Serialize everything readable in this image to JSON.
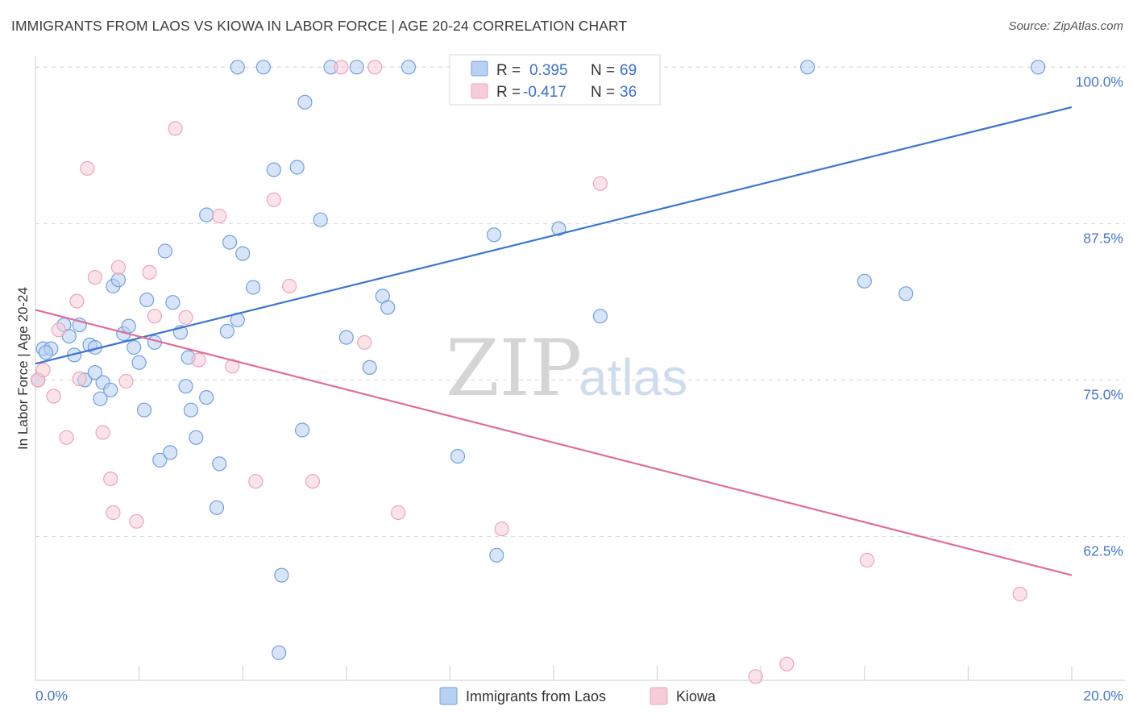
{
  "header": {
    "title": "IMMIGRANTS FROM LAOS VS KIOWA IN LABOR FORCE | AGE 20-24 CORRELATION CHART",
    "source": "Source: ZipAtlas.com"
  },
  "watermark": {
    "zip": "ZIP",
    "atlas": "atlas"
  },
  "legend": {
    "rows": [
      {
        "r_label": "R =",
        "r_value": "0.395",
        "n_label": "N =",
        "n_value": "69"
      },
      {
        "r_label": "R =",
        "r_value": "-0.417",
        "n_label": "N =",
        "n_value": "36"
      }
    ]
  },
  "chart_data": {
    "type": "scatter",
    "ylabel": "In Labor Force | Age 20-24",
    "xlim": [
      0,
      20
    ],
    "ylim": [
      51,
      101.5
    ],
    "x_tick_labels": [
      "0.0%",
      "20.0%"
    ],
    "y_ticks": [
      {
        "value": 62.5,
        "label": "62.5%"
      },
      {
        "value": 75.0,
        "label": "75.0%"
      },
      {
        "value": 87.5,
        "label": "87.5%"
      },
      {
        "value": 100.0,
        "label": "100.0%"
      }
    ],
    "grid": true,
    "legend_position": "top-center",
    "series": [
      {
        "name": "Immigrants from Laos",
        "color": "#6fa0e0",
        "fill": "#b8d0f2",
        "line_color": "#3b76cf",
        "trend": {
          "x": [
            0,
            20
          ],
          "y": [
            76.3,
            96.8
          ]
        },
        "points": [
          [
            0.15,
            77.5
          ],
          [
            0.3,
            77.5
          ],
          [
            0.55,
            79.4
          ],
          [
            0.65,
            78.5
          ],
          [
            0.75,
            77
          ],
          [
            0.85,
            79.4
          ],
          [
            0.95,
            75
          ],
          [
            1.05,
            77.8
          ],
          [
            1.15,
            77.6
          ],
          [
            1.25,
            73.5
          ],
          [
            1.3,
            74.8
          ],
          [
            1.45,
            74.2
          ],
          [
            1.5,
            82.5
          ],
          [
            1.6,
            83
          ],
          [
            1.7,
            78.7
          ],
          [
            1.8,
            79.3
          ],
          [
            1.9,
            77.6
          ],
          [
            2.0,
            76.4
          ],
          [
            2.1,
            72.6
          ],
          [
            2.15,
            81.4
          ],
          [
            2.3,
            78
          ],
          [
            2.4,
            68.6
          ],
          [
            2.5,
            85.3
          ],
          [
            2.6,
            69.2
          ],
          [
            2.65,
            81.2
          ],
          [
            2.8,
            78.8
          ],
          [
            2.9,
            74.5
          ],
          [
            3.0,
            72.6
          ],
          [
            3.1,
            70.4
          ],
          [
            3.3,
            73.6
          ],
          [
            3.3,
            88.2
          ],
          [
            3.5,
            64.8
          ],
          [
            3.55,
            68.3
          ],
          [
            3.7,
            78.9
          ],
          [
            3.75,
            86
          ],
          [
            3.9,
            79.8
          ],
          [
            3.9,
            100
          ],
          [
            4.0,
            85.1
          ],
          [
            4.2,
            82.4
          ],
          [
            4.4,
            100
          ],
          [
            4.6,
            91.8
          ],
          [
            4.7,
            53.2
          ],
          [
            4.75,
            59.4
          ],
          [
            5.05,
            92
          ],
          [
            5.15,
            71
          ],
          [
            5.2,
            97.2
          ],
          [
            5.5,
            87.8
          ],
          [
            5.7,
            100
          ],
          [
            6.0,
            78.4
          ],
          [
            6.2,
            100
          ],
          [
            6.45,
            76
          ],
          [
            6.7,
            81.7
          ],
          [
            6.8,
            80.8
          ],
          [
            7.2,
            100
          ],
          [
            8.15,
            68.9
          ],
          [
            8.6,
            100
          ],
          [
            8.85,
            86.6
          ],
          [
            8.9,
            61
          ],
          [
            10.1,
            87.1
          ],
          [
            10.9,
            80.1
          ],
          [
            11.05,
            100
          ],
          [
            14.9,
            100
          ],
          [
            16.0,
            82.9
          ],
          [
            16.8,
            81.9
          ],
          [
            19.35,
            100
          ],
          [
            0.05,
            75.0
          ],
          [
            0.2,
            77.2
          ],
          [
            1.15,
            75.6
          ],
          [
            2.95,
            76.8
          ]
        ]
      },
      {
        "name": "Kiowa",
        "color": "#eea3b8",
        "fill": "#f7ccd9",
        "line_color": "#e06c99",
        "trend": {
          "x": [
            0,
            20
          ],
          "y": [
            80.6,
            59.4
          ]
        },
        "points": [
          [
            0.05,
            75.0
          ],
          [
            0.15,
            75.8
          ],
          [
            0.35,
            73.7
          ],
          [
            0.45,
            79.0
          ],
          [
            0.6,
            70.4
          ],
          [
            0.8,
            81.3
          ],
          [
            0.85,
            75.1
          ],
          [
            1.0,
            91.9
          ],
          [
            1.15,
            83.2
          ],
          [
            1.3,
            70.8
          ],
          [
            1.45,
            67.1
          ],
          [
            1.5,
            64.4
          ],
          [
            1.6,
            84.0
          ],
          [
            1.75,
            74.9
          ],
          [
            1.95,
            63.7
          ],
          [
            2.2,
            83.6
          ],
          [
            2.3,
            80.1
          ],
          [
            2.7,
            95.1
          ],
          [
            2.9,
            80.0
          ],
          [
            3.15,
            76.6
          ],
          [
            3.55,
            88.1
          ],
          [
            3.8,
            76.1
          ],
          [
            4.25,
            66.9
          ],
          [
            4.6,
            89.4
          ],
          [
            4.9,
            82.5
          ],
          [
            5.35,
            66.9
          ],
          [
            5.9,
            100
          ],
          [
            6.35,
            78.0
          ],
          [
            6.55,
            100
          ],
          [
            7.0,
            64.4
          ],
          [
            9.0,
            63.1
          ],
          [
            10.9,
            90.7
          ],
          [
            13.9,
            51.3
          ],
          [
            14.5,
            52.3
          ],
          [
            16.05,
            60.6
          ],
          [
            19.0,
            57.9
          ]
        ]
      }
    ]
  }
}
